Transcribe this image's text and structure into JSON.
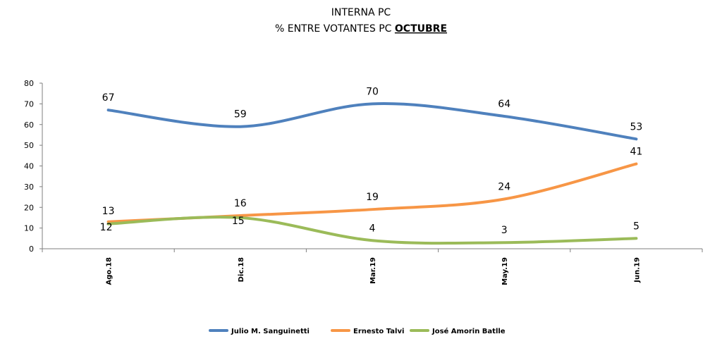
{
  "title_line1": "INTERNA PC",
  "title_line2_prefix": "% ENTRE VOTANTES PC ",
  "title_line2_emph": "OCTUBRE",
  "chart_data": {
    "type": "line",
    "title": "INTERNA PC — % ENTRE VOTANTES PC OCTUBRE",
    "categories": [
      "Ago.18",
      "Dic.18",
      "Mar.19",
      "May.19",
      "Jun.19"
    ],
    "y_ticks": [
      "0",
      "10",
      "20",
      "30",
      "40",
      "50",
      "60",
      "70",
      "80"
    ],
    "ylim": [
      0,
      80
    ],
    "xlabel": "",
    "ylabel": "",
    "legend_position": "bottom",
    "series": [
      {
        "name": "Julio M. Sanguinetti",
        "color": "#4F81BD",
        "values": [
          67,
          59,
          70,
          64,
          53
        ]
      },
      {
        "name": "Ernesto Talvi",
        "color": "#F79646",
        "values": [
          13,
          16,
          19,
          24,
          41
        ]
      },
      {
        "name": "José Amorin Batlle",
        "color": "#9BBB59",
        "values": [
          12,
          15,
          4,
          3,
          5
        ]
      }
    ]
  }
}
